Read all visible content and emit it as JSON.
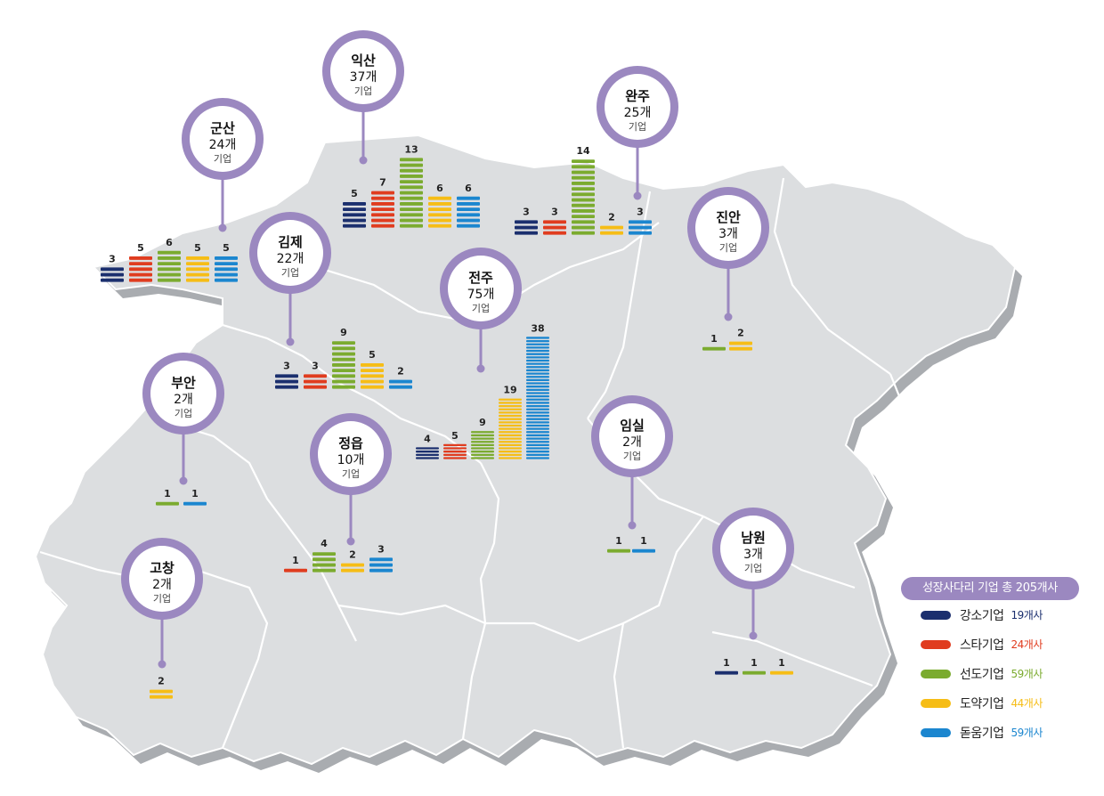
{
  "colors": {
    "kangso": "#1b2f6e",
    "star": "#e03c1f",
    "seondo": "#7bab2f",
    "doyak": "#f6bd16",
    "dodum": "#1b86cf",
    "pin": "#9b88c0",
    "map_fill": "#dcdee0",
    "map_shadow": "#a9acb0"
  },
  "regions": [
    {
      "id": "iksan",
      "name": "익산",
      "count": "37개",
      "unit": "기업",
      "bars": [
        {
          "type": "kangso",
          "value": 5
        },
        {
          "type": "star",
          "value": 7
        },
        {
          "type": "seondo",
          "value": 13
        },
        {
          "type": "doyak",
          "value": 6
        },
        {
          "type": "dodum",
          "value": 6
        }
      ]
    },
    {
      "id": "gunsan",
      "name": "군산",
      "count": "24개",
      "unit": "기업",
      "bars": [
        {
          "type": "kangso",
          "value": 3
        },
        {
          "type": "star",
          "value": 5
        },
        {
          "type": "seondo",
          "value": 6
        },
        {
          "type": "doyak",
          "value": 5
        },
        {
          "type": "dodum",
          "value": 5
        }
      ]
    },
    {
      "id": "wanju",
      "name": "완주",
      "count": "25개",
      "unit": "기업",
      "bars": [
        {
          "type": "kangso",
          "value": 3
        },
        {
          "type": "star",
          "value": 3
        },
        {
          "type": "seondo",
          "value": 14
        },
        {
          "type": "doyak",
          "value": 2
        },
        {
          "type": "dodum",
          "value": 3
        }
      ]
    },
    {
      "id": "gimje",
      "name": "김제",
      "count": "22개",
      "unit": "기업",
      "bars": [
        {
          "type": "kangso",
          "value": 3
        },
        {
          "type": "star",
          "value": 3
        },
        {
          "type": "seondo",
          "value": 9
        },
        {
          "type": "doyak",
          "value": 5
        },
        {
          "type": "dodum",
          "value": 2
        }
      ]
    },
    {
      "id": "jeonju",
      "name": "전주",
      "count": "75개",
      "unit": "기업",
      "bars": [
        {
          "type": "kangso",
          "value": 4
        },
        {
          "type": "star",
          "value": 5
        },
        {
          "type": "seondo",
          "value": 9
        },
        {
          "type": "doyak",
          "value": 19
        },
        {
          "type": "dodum",
          "value": 38
        }
      ]
    },
    {
      "id": "jinan",
      "name": "진안",
      "count": "3개",
      "unit": "기업",
      "bars": [
        {
          "type": "seondo",
          "value": 1
        },
        {
          "type": "doyak",
          "value": 2
        }
      ]
    },
    {
      "id": "buan",
      "name": "부안",
      "count": "2개",
      "unit": "기업",
      "bars": [
        {
          "type": "seondo",
          "value": 1
        },
        {
          "type": "dodum",
          "value": 1
        }
      ]
    },
    {
      "id": "jeongeup",
      "name": "정읍",
      "count": "10개",
      "unit": "기업",
      "bars": [
        {
          "type": "star",
          "value": 1
        },
        {
          "type": "seondo",
          "value": 4
        },
        {
          "type": "doyak",
          "value": 2
        },
        {
          "type": "dodum",
          "value": 3
        }
      ]
    },
    {
      "id": "imsil",
      "name": "임실",
      "count": "2개",
      "unit": "기업",
      "bars": [
        {
          "type": "seondo",
          "value": 1
        },
        {
          "type": "dodum",
          "value": 1
        }
      ]
    },
    {
      "id": "gochang",
      "name": "고창",
      "count": "2개",
      "unit": "기업",
      "bars": [
        {
          "type": "doyak",
          "value": 2
        }
      ]
    },
    {
      "id": "namwon",
      "name": "남원",
      "count": "3개",
      "unit": "기업",
      "bars": [
        {
          "type": "kangso",
          "value": 1
        },
        {
          "type": "seondo",
          "value": 1
        },
        {
          "type": "doyak",
          "value": 1
        }
      ]
    }
  ],
  "legend": {
    "title": "성장사다리 기업 총 205개사",
    "items": [
      {
        "type": "kangso",
        "name": "강소기업",
        "count": "19개사"
      },
      {
        "type": "star",
        "name": "스타기업",
        "count": "24개사"
      },
      {
        "type": "seondo",
        "name": "선도기업",
        "count": "59개사"
      },
      {
        "type": "doyak",
        "name": "도약기업",
        "count": "44개사"
      },
      {
        "type": "dodum",
        "name": "돋움기업",
        "count": "59개사"
      }
    ]
  }
}
